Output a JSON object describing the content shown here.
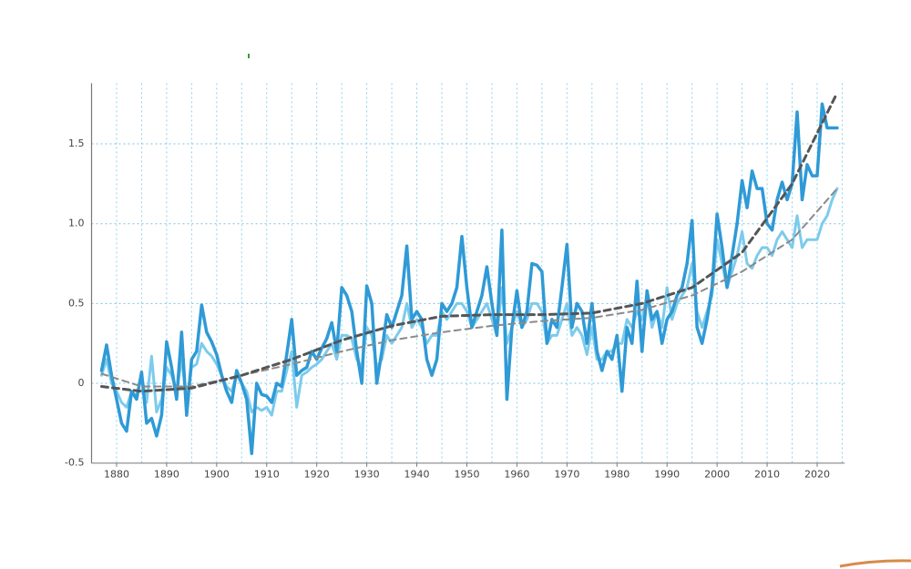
{
  "chart_data": {
    "type": "line",
    "xlim": [
      1875,
      2025.5
    ],
    "ylim": [
      -0.5,
      1.88
    ],
    "xticks": [
      1880,
      1890,
      1900,
      1910,
      1920,
      1930,
      1940,
      1950,
      1960,
      1970,
      1980,
      1990,
      2000,
      2010,
      2020
    ],
    "xminor": [
      1885,
      1895,
      1905,
      1915,
      1925,
      1935,
      1945,
      1955,
      1965,
      1975,
      1985,
      1995,
      2005,
      2015,
      2025
    ],
    "yticks": [
      -0.5,
      0,
      0.5,
      {
        "value": 1,
        "label": "1.0"
      },
      1.5
    ],
    "grid": true,
    "x": [
      1877,
      1878,
      1879,
      1880,
      1881,
      1882,
      1883,
      1884,
      1885,
      1886,
      1887,
      1888,
      1889,
      1890,
      1891,
      1892,
      1893,
      1894,
      1895,
      1896,
      1897,
      1898,
      1899,
      1900,
      1901,
      1902,
      1903,
      1904,
      1905,
      1906,
      1907,
      1908,
      1909,
      1910,
      1911,
      1912,
      1913,
      1914,
      1915,
      1916,
      1917,
      1918,
      1919,
      1920,
      1921,
      1922,
      1923,
      1924,
      1925,
      1926,
      1927,
      1928,
      1929,
      1930,
      1931,
      1932,
      1933,
      1934,
      1935,
      1936,
      1937,
      1938,
      1939,
      1940,
      1941,
      1942,
      1943,
      1944,
      1945,
      1946,
      1947,
      1948,
      1949,
      1950,
      1951,
      1952,
      1953,
      1954,
      1955,
      1956,
      1957,
      1958,
      1959,
      1960,
      1961,
      1962,
      1963,
      1964,
      1965,
      1966,
      1967,
      1968,
      1969,
      1970,
      1971,
      1972,
      1973,
      1974,
      1975,
      1976,
      1977,
      1978,
      1979,
      1980,
      1981,
      1982,
      1983,
      1984,
      1985,
      1986,
      1987,
      1988,
      1989,
      1990,
      1991,
      1992,
      1993,
      1994,
      1995,
      1996,
      1997,
      1998,
      1999,
      2000,
      2001,
      2002,
      2003,
      2004,
      2005,
      2006,
      2007,
      2008,
      2009,
      2010,
      2011,
      2012,
      2013,
      2014,
      2015,
      2016,
      2017,
      2018,
      2019,
      2020,
      2021,
      2022,
      2023,
      2024
    ],
    "series": [
      {
        "color": "#7ccbec",
        "width": 3,
        "values": [
          0.05,
          0.15,
          0.0,
          -0.05,
          -0.12,
          -0.15,
          -0.05,
          -0.08,
          0.05,
          -0.12,
          0.17,
          -0.18,
          -0.1,
          0.1,
          0.05,
          -0.05,
          0.15,
          -0.1,
          0.1,
          0.12,
          0.25,
          0.2,
          0.17,
          0.12,
          0.05,
          -0.02,
          -0.05,
          0.05,
          0.0,
          -0.05,
          -0.18,
          -0.15,
          -0.17,
          -0.15,
          -0.2,
          -0.05,
          -0.05,
          0.08,
          0.2,
          -0.15,
          0.05,
          0.07,
          0.1,
          0.12,
          0.15,
          0.2,
          0.25,
          0.15,
          0.3,
          0.3,
          0.28,
          0.15,
          0.1,
          0.35,
          0.3,
          0.1,
          0.15,
          0.3,
          0.25,
          0.3,
          0.35,
          0.5,
          0.35,
          0.4,
          0.35,
          0.25,
          0.3,
          0.3,
          0.45,
          0.4,
          0.45,
          0.5,
          0.5,
          0.45,
          0.35,
          0.4,
          0.45,
          0.5,
          0.4,
          0.3,
          0.6,
          0.25,
          0.35,
          0.45,
          0.35,
          0.4,
          0.5,
          0.5,
          0.45,
          0.25,
          0.3,
          0.3,
          0.4,
          0.5,
          0.3,
          0.35,
          0.3,
          0.18,
          0.35,
          0.15,
          0.15,
          0.2,
          0.2,
          0.25,
          0.25,
          0.4,
          0.35,
          0.45,
          0.4,
          0.55,
          0.35,
          0.45,
          0.35,
          0.6,
          0.4,
          0.5,
          0.55,
          0.6,
          0.75,
          0.45,
          0.35,
          0.45,
          0.55,
          0.9,
          0.75,
          0.6,
          0.7,
          0.8,
          0.95,
          0.75,
          0.72,
          0.8,
          0.85,
          0.85,
          0.8,
          0.9,
          0.95,
          0.9,
          0.85,
          1.05,
          0.85,
          0.9,
          0.9,
          0.9,
          1.0,
          1.05,
          1.15,
          1.22
        ]
      },
      {
        "color": "#2f9ad6",
        "width": 3.5,
        "values": [
          0.08,
          0.24,
          0.05,
          -0.1,
          -0.25,
          -0.3,
          -0.05,
          -0.1,
          0.07,
          -0.25,
          -0.22,
          -0.33,
          -0.2,
          0.26,
          0.1,
          -0.1,
          0.32,
          -0.2,
          0.15,
          0.2,
          0.49,
          0.32,
          0.26,
          0.18,
          0.05,
          -0.05,
          -0.12,
          0.08,
          0.0,
          -0.1,
          -0.44,
          0.0,
          -0.07,
          -0.08,
          -0.12,
          0.0,
          -0.02,
          0.18,
          0.4,
          0.05,
          0.08,
          0.1,
          0.2,
          0.15,
          0.22,
          0.28,
          0.38,
          0.2,
          0.6,
          0.55,
          0.45,
          0.2,
          0.0,
          0.61,
          0.5,
          0.0,
          0.2,
          0.43,
          0.35,
          0.45,
          0.55,
          0.86,
          0.4,
          0.45,
          0.4,
          0.15,
          0.05,
          0.15,
          0.5,
          0.45,
          0.5,
          0.6,
          0.92,
          0.6,
          0.35,
          0.45,
          0.55,
          0.73,
          0.5,
          0.3,
          0.96,
          -0.1,
          0.35,
          0.58,
          0.35,
          0.45,
          0.75,
          0.74,
          0.7,
          0.25,
          0.4,
          0.35,
          0.6,
          0.87,
          0.35,
          0.5,
          0.45,
          0.25,
          0.5,
          0.2,
          0.08,
          0.2,
          0.15,
          0.3,
          -0.05,
          0.35,
          0.25,
          0.64,
          0.2,
          0.58,
          0.4,
          0.45,
          0.25,
          0.4,
          0.45,
          0.55,
          0.6,
          0.75,
          1.02,
          0.35,
          0.25,
          0.4,
          0.6,
          1.06,
          0.85,
          0.6,
          0.8,
          1.0,
          1.27,
          1.1,
          1.33,
          1.22,
          1.22,
          1.0,
          0.96,
          1.15,
          1.26,
          1.15,
          1.25,
          1.7,
          1.15,
          1.37,
          1.3,
          1.3,
          1.75,
          1.6,
          1.6,
          1.6
        ]
      },
      {
        "color": "#8a8a8a",
        "width": 2,
        "dash": true,
        "x": [
          1877,
          1885,
          1895,
          1905,
          1915,
          1925,
          1935,
          1945,
          1955,
          1965,
          1975,
          1985,
          1995,
          2005,
          2015,
          2024
        ],
        "values": [
          0.06,
          -0.02,
          -0.02,
          0.05,
          0.12,
          0.2,
          0.27,
          0.32,
          0.36,
          0.39,
          0.41,
          0.46,
          0.55,
          0.7,
          0.9,
          1.22
        ]
      },
      {
        "color": "#555555",
        "width": 3,
        "dash": true,
        "x": [
          1877,
          1885,
          1895,
          1905,
          1915,
          1925,
          1935,
          1945,
          1955,
          1965,
          1975,
          1985,
          1995,
          2005,
          2015,
          2024
        ],
        "values": [
          -0.02,
          -0.05,
          -0.03,
          0.05,
          0.15,
          0.27,
          0.36,
          0.42,
          0.43,
          0.43,
          0.44,
          0.5,
          0.6,
          0.82,
          1.25,
          1.82
        ]
      }
    ]
  }
}
